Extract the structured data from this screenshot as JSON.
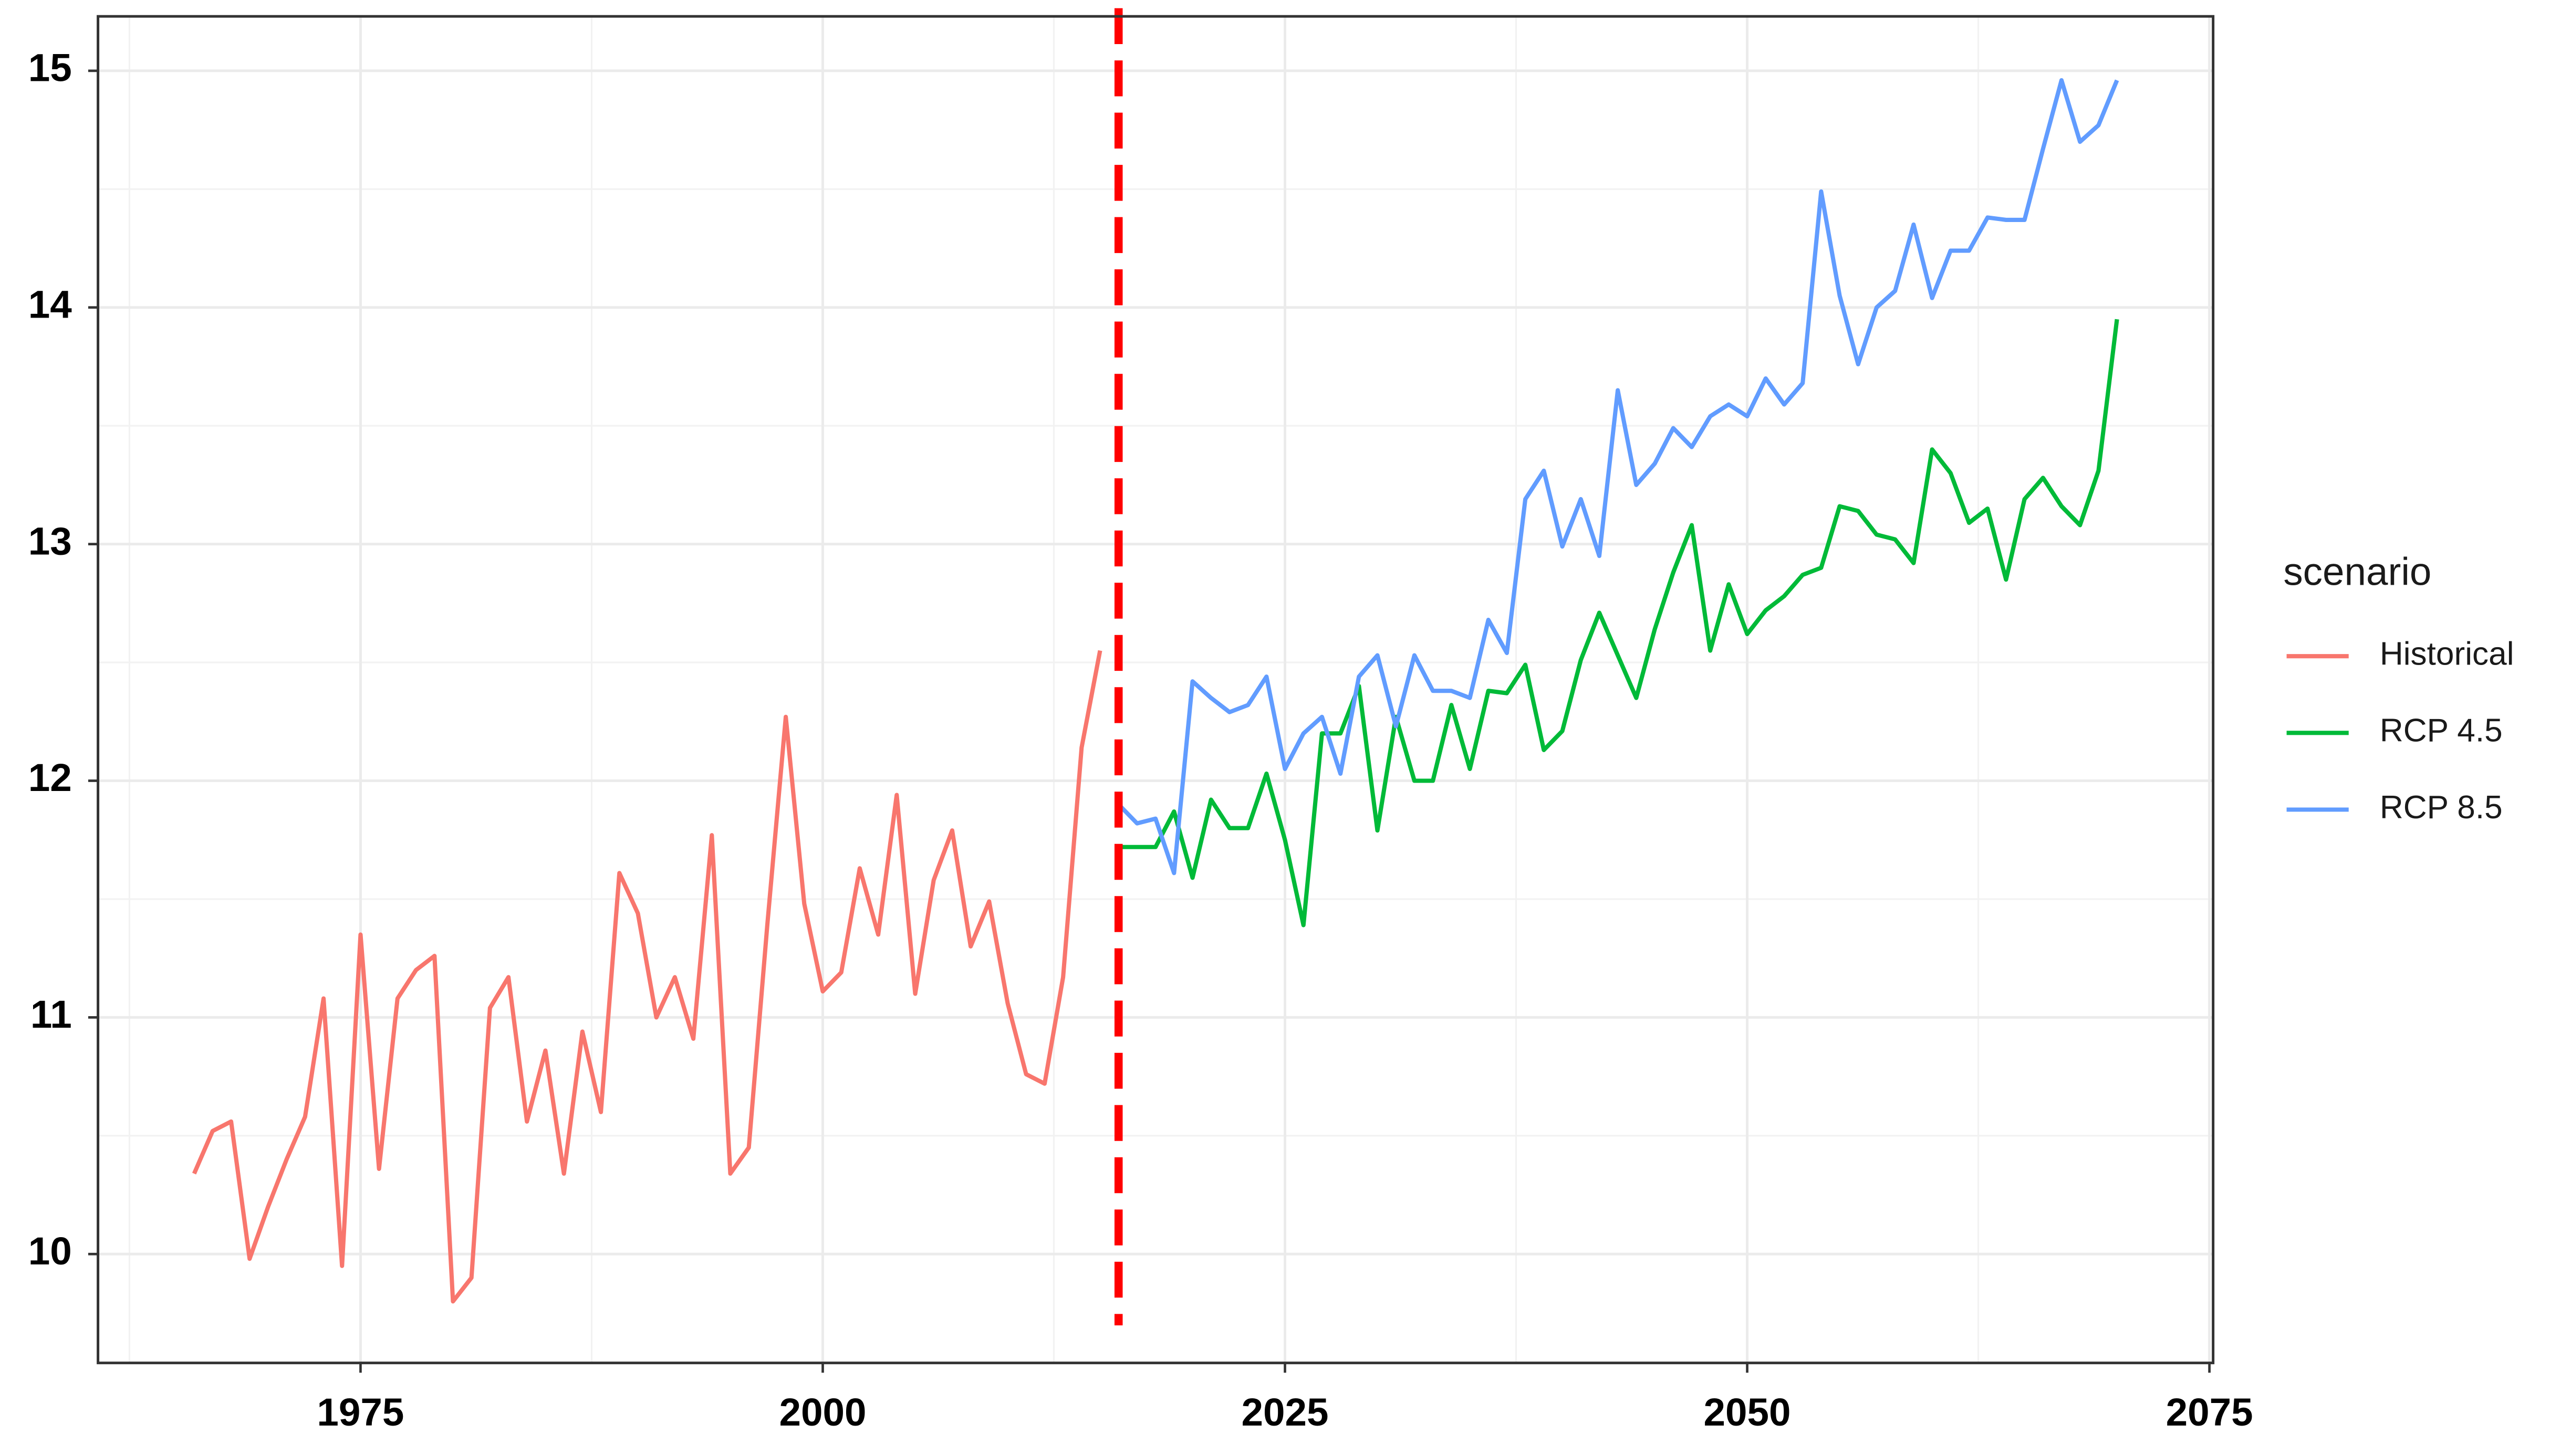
{
  "chart_data": {
    "type": "line",
    "legend_title": "scenario",
    "xlim": [
      1960.8,
      2075.2
    ],
    "xticks": [
      1975,
      2000,
      2025,
      2050,
      2075
    ],
    "ylim": [
      9.54,
      15.23
    ],
    "yticks": [
      10,
      11,
      12,
      13,
      14,
      15
    ],
    "grid": true,
    "legend": "right",
    "vline": 2016,
    "vline_color": "#ff0000",
    "series": [
      {
        "name": "Historical",
        "color": "#F8766D",
        "x": [
          1966,
          1967,
          1968,
          1969,
          1970,
          1971,
          1972,
          1973,
          1974,
          1975,
          1976,
          1977,
          1978,
          1979,
          1980,
          1981,
          1982,
          1983,
          1984,
          1985,
          1986,
          1987,
          1988,
          1989,
          1990,
          1991,
          1992,
          1993,
          1994,
          1995,
          1996,
          1997,
          1998,
          1999,
          2000,
          2001,
          2002,
          2003,
          2004,
          2005,
          2006,
          2007,
          2008,
          2009,
          2010,
          2011,
          2012,
          2013,
          2014,
          2015
        ],
        "values": [
          10.34,
          10.52,
          10.56,
          9.98,
          10.2,
          10.4,
          10.58,
          11.08,
          9.95,
          11.35,
          10.36,
          11.08,
          11.2,
          11.26,
          9.8,
          9.9,
          11.04,
          11.17,
          10.56,
          10.86,
          10.34,
          10.94,
          10.6,
          11.61,
          11.44,
          11.0,
          11.17,
          10.91,
          11.77,
          10.34,
          10.45,
          11.39,
          12.27,
          11.48,
          11.11,
          11.19,
          11.63,
          11.35,
          11.94,
          11.1,
          11.58,
          11.79,
          11.3,
          11.49,
          11.06,
          10.76,
          10.72,
          11.17,
          12.14,
          12.55
        ]
      },
      {
        "name": "RCP 4.5",
        "color": "#00BA38",
        "x": [
          2016,
          2017,
          2018,
          2019,
          2020,
          2021,
          2022,
          2023,
          2024,
          2025,
          2026,
          2027,
          2028,
          2029,
          2030,
          2031,
          2032,
          2033,
          2034,
          2035,
          2036,
          2037,
          2038,
          2039,
          2040,
          2041,
          2042,
          2043,
          2044,
          2045,
          2046,
          2047,
          2048,
          2049,
          2050,
          2051,
          2052,
          2053,
          2054,
          2055,
          2056,
          2057,
          2058,
          2059,
          2060,
          2061,
          2062,
          2063,
          2064,
          2065,
          2066,
          2067,
          2068,
          2069,
          2070
        ],
        "values": [
          11.72,
          11.72,
          11.72,
          11.87,
          11.59,
          11.92,
          11.8,
          11.8,
          12.03,
          11.75,
          11.39,
          12.2,
          12.2,
          12.4,
          11.79,
          12.27,
          12.0,
          12.0,
          12.32,
          12.05,
          12.38,
          12.37,
          12.49,
          12.13,
          12.21,
          12.51,
          12.71,
          12.53,
          12.35,
          12.64,
          12.88,
          13.08,
          12.55,
          12.83,
          12.62,
          12.72,
          12.78,
          12.87,
          12.9,
          13.16,
          13.14,
          13.04,
          13.02,
          12.92,
          13.4,
          13.3,
          13.09,
          13.15,
          12.85,
          13.19,
          13.28,
          13.16,
          13.08,
          13.31,
          13.95
        ]
      },
      {
        "name": "RCP 8.5",
        "color": "#619CFF",
        "x": [
          2016,
          2017,
          2018,
          2019,
          2020,
          2021,
          2022,
          2023,
          2024,
          2025,
          2026,
          2027,
          2028,
          2029,
          2030,
          2031,
          2032,
          2033,
          2034,
          2035,
          2036,
          2037,
          2038,
          2039,
          2040,
          2041,
          2042,
          2043,
          2044,
          2045,
          2046,
          2047,
          2048,
          2049,
          2050,
          2051,
          2052,
          2053,
          2054,
          2055,
          2056,
          2057,
          2058,
          2059,
          2060,
          2061,
          2062,
          2063,
          2064,
          2065,
          2066,
          2067,
          2068,
          2069,
          2070
        ],
        "values": [
          11.9,
          11.82,
          11.84,
          11.61,
          12.42,
          12.35,
          12.29,
          12.32,
          12.44,
          12.05,
          12.2,
          12.27,
          12.03,
          12.44,
          12.53,
          12.23,
          12.53,
          12.38,
          12.38,
          12.35,
          12.68,
          12.54,
          13.19,
          13.31,
          12.99,
          13.19,
          12.95,
          13.65,
          13.25,
          13.34,
          13.49,
          13.41,
          13.54,
          13.59,
          13.54,
          13.7,
          13.59,
          13.68,
          14.49,
          14.05,
          13.76,
          14.0,
          14.07,
          14.35,
          14.04,
          14.24,
          14.24,
          14.38,
          14.37,
          14.37,
          14.67,
          14.96,
          14.7,
          14.77,
          14.96
        ]
      }
    ]
  }
}
